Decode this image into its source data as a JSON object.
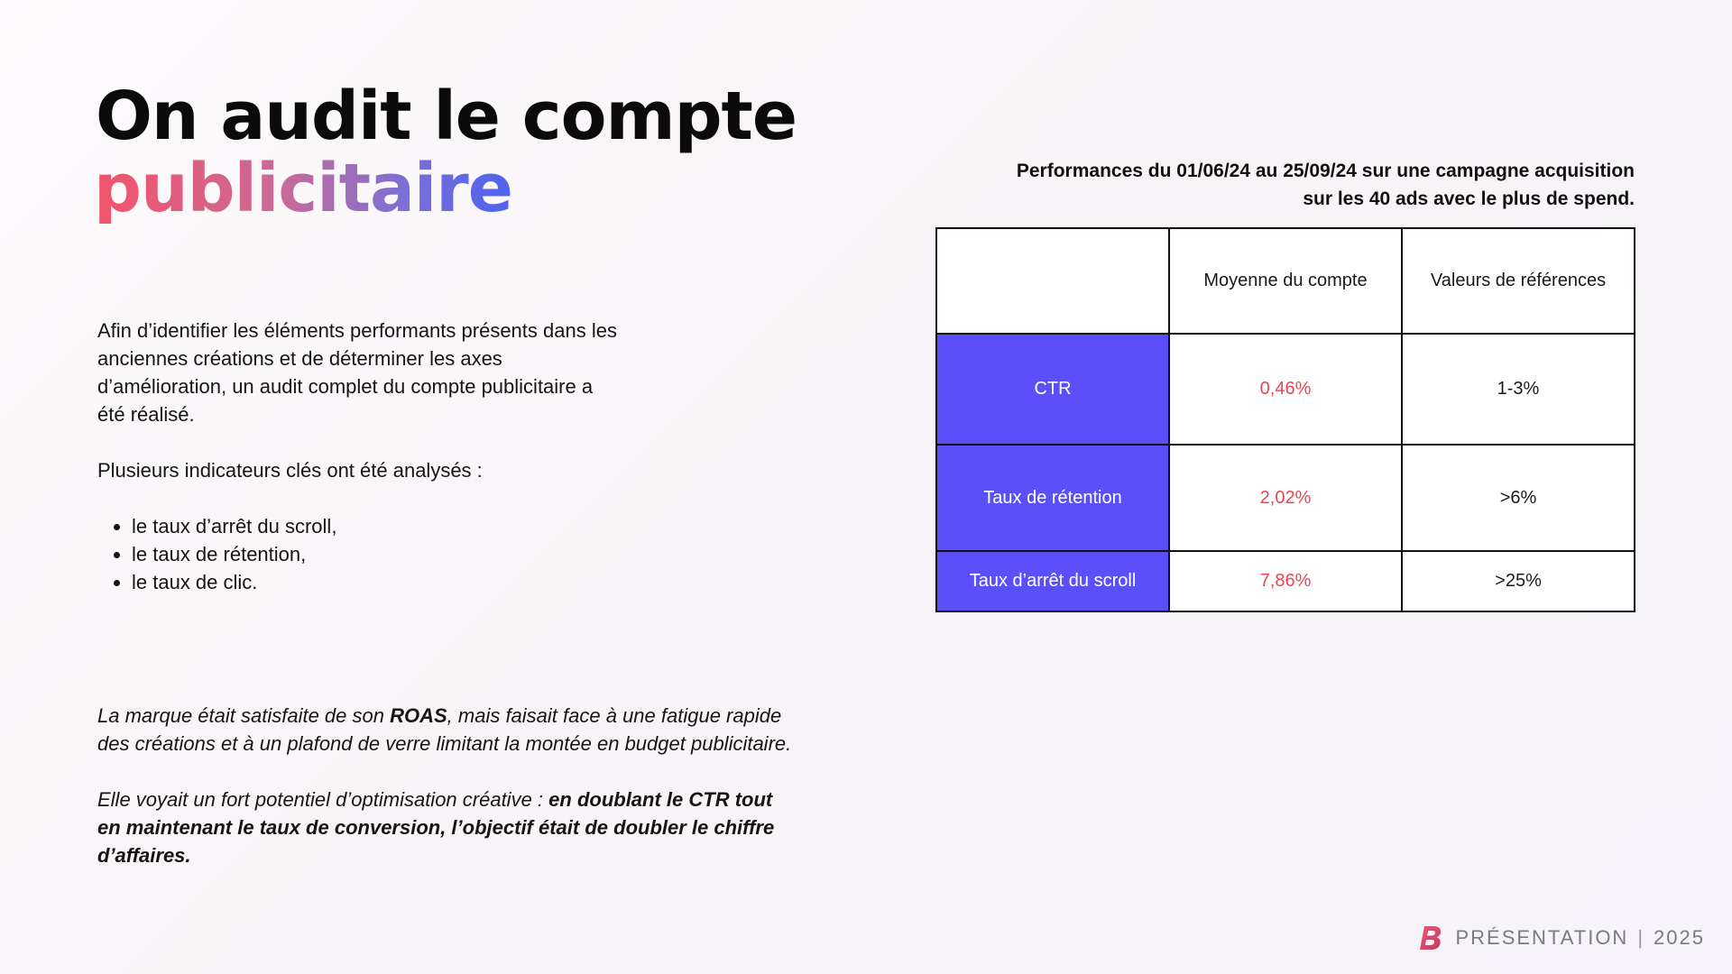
{
  "title": {
    "line1": "On audit le compte",
    "line2": "publicitaire"
  },
  "intro": {
    "paragraph1": "Afin d’identifier les éléments performants présents dans les anciennes créations et de déterminer les axes d’amélioration, un audit complet du compte publicitaire a été réalisé.",
    "paragraph2": "Plusieurs indicateurs clés ont été analysés :",
    "bullets": [
      "le taux d’arrêt du scroll,",
      "le taux de rétention,",
      "le taux de clic."
    ]
  },
  "conclusion": {
    "p1_start": "La marque était satisfaite de son ",
    "p1_bold": "ROAS",
    "p1_end": ", mais faisait face à une fatigue rapide des créations et à un plafond de verre limitant la montée en budget publicitaire.",
    "p2_start": "Elle voyait un fort potentiel d’optimisation créative : ",
    "p2_bold": "en doublant le CTR tout en maintenant le taux de conversion, l’objectif était de doubler le chiffre d’affaires."
  },
  "performance": {
    "caption_line1": "Performances du 01/06/24 au 25/09/24 sur une campagne acquisition",
    "caption_line2": "sur les 40 ads avec le plus de spend.",
    "columns": [
      "",
      "Moyenne du compte",
      "Valeurs de références"
    ],
    "rows": [
      {
        "metric": "CTR",
        "account": "0,46%",
        "reference": "1-3%"
      },
      {
        "metric": "Taux de rétention",
        "account": "2,02%",
        "reference": ">6%"
      },
      {
        "metric": "Taux d’arrêt du scroll",
        "account": "7,86%",
        "reference": ">25%"
      }
    ],
    "metric_bg_color": "#5b4ff9",
    "account_text_color": "#f04352"
  },
  "footer": {
    "brand_icon": "b-logo-icon",
    "label": "PRÉSENTATION",
    "separator": "|",
    "year": "2025"
  }
}
